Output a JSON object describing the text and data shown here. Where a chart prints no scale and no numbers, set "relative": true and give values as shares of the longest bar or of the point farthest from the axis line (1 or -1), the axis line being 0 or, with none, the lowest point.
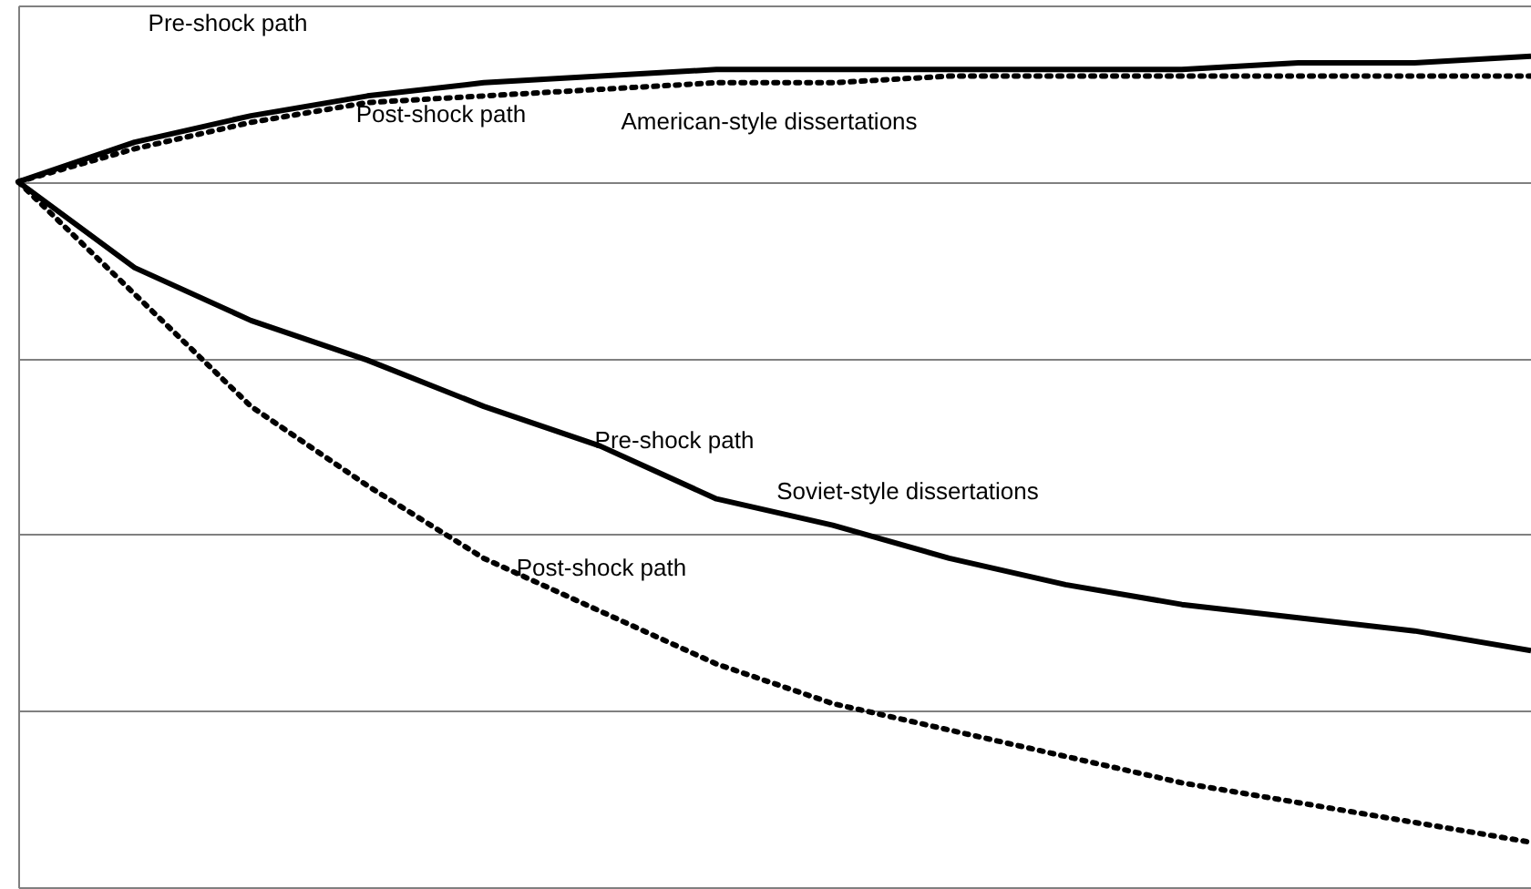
{
  "chart_data": {
    "type": "line",
    "relative": true,
    "categories": [
      null,
      null,
      null,
      null,
      null,
      null,
      null,
      null,
      null,
      null,
      null,
      null,
      null,
      null
    ],
    "series": [
      {
        "name": "Pre-shock path",
        "color": "#000000",
        "line_style": "solid",
        "values": [
          0,
          0.06,
          0.1,
          0.13,
          0.15,
          0.16,
          0.17,
          0.17,
          0.17,
          0.17,
          0.17,
          0.18,
          0.18,
          0.19
        ]
      },
      {
        "name": "Post-shock path",
        "color": "#000000",
        "line_style": "dotted",
        "values": [
          0,
          0.05,
          0.09,
          0.12,
          0.13,
          0.14,
          0.15,
          0.15,
          0.16,
          0.16,
          0.16,
          0.16,
          0.16,
          0.16
        ]
      },
      {
        "name": "Pre-shock path",
        "color": "#000000",
        "line_style": "solid",
        "values": [
          0,
          -0.13,
          -0.21,
          -0.27,
          -0.34,
          -0.4,
          -0.48,
          -0.52,
          -0.57,
          -0.61,
          -0.64,
          -0.66,
          -0.68,
          -0.71
        ]
      },
      {
        "name": "Post-shock path",
        "color": "#000000",
        "line_style": "dotted",
        "values": [
          0,
          -0.17,
          -0.34,
          -0.46,
          -0.57,
          -0.65,
          -0.73,
          -0.79,
          -0.83,
          -0.87,
          -0.91,
          -0.94,
          -0.97,
          -1
        ]
      }
    ],
    "annotations": [
      "American-style dissertations",
      "Soviet-style dissertations"
    ],
    "grid": "y",
    "marker": "none"
  }
}
